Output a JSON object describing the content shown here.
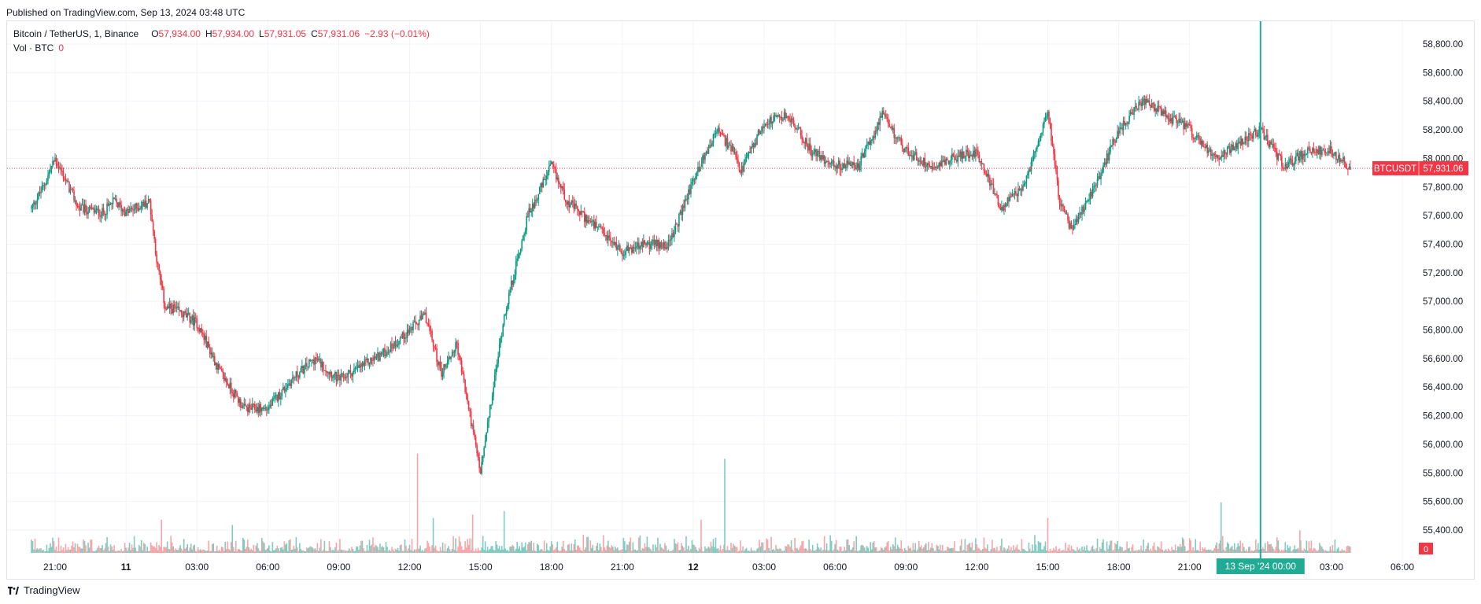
{
  "header": {
    "published": "Published on TradingView.com, Sep 13, 2024 03:48 UTC"
  },
  "legend": {
    "symbol": "Bitcoin / TetherUS, 1, Binance",
    "open_label": "O",
    "open": "57,934.00",
    "high_label": "H",
    "high": "57,934.00",
    "low_label": "L",
    "low": "57,931.05",
    "close_label": "C",
    "close": "57,931.06",
    "change": "−2.93 (−0.01%)",
    "volume_label": "Vol · BTC",
    "volume_value": "0"
  },
  "price_tag": {
    "ticker": "BTCUSDT",
    "price": "57,931.06",
    "value": 57931.06
  },
  "volume_tag": "0",
  "crosshair_time_label": "13 Sep '24    00:00",
  "footer": {
    "brand": "TradingView"
  },
  "colors": {
    "up": "#089981",
    "down": "#f23645",
    "up_volume": "#7fcbc0",
    "down_volume": "#f7a5a9",
    "crosshair": "#22ab94",
    "grid": "#f0f3fa",
    "axis_text": "#131722"
  },
  "chart_data": {
    "type": "candlestick",
    "title": "Bitcoin / TetherUS, 1, Binance",
    "interval": "1 minute",
    "y_axis": {
      "position": "right",
      "ylim": [
        55300,
        58950
      ],
      "ticks": [
        55400,
        55600,
        55800,
        56000,
        56200,
        56400,
        56600,
        56800,
        57000,
        57200,
        57400,
        57600,
        57800,
        58000,
        58200,
        58400,
        58600,
        58800
      ],
      "tick_labels": [
        "55,400.00",
        "55,600.00",
        "55,800.00",
        "56,000.00",
        "56,200.00",
        "56,400.00",
        "56,600.00",
        "56,800.00",
        "57,000.00",
        "57,200.00",
        "57,400.00",
        "57,600.00",
        "57,800.00",
        "58,000.00",
        "58,200.00",
        "58,400.00",
        "58,600.00",
        "58,800.00"
      ]
    },
    "x_axis": {
      "time_range": [
        "2024-09-10 20:00",
        "2024-09-13 06:00"
      ],
      "ticks": [
        "2024-09-10 21:00",
        "2024-09-11 00:00",
        "2024-09-11 03:00",
        "2024-09-11 06:00",
        "2024-09-11 09:00",
        "2024-09-11 12:00",
        "2024-09-11 15:00",
        "2024-09-11 18:00",
        "2024-09-11 21:00",
        "2024-09-12 00:00",
        "2024-09-12 03:00",
        "2024-09-12 06:00",
        "2024-09-12 09:00",
        "2024-09-12 12:00",
        "2024-09-12 15:00",
        "2024-09-12 18:00",
        "2024-09-12 21:00",
        "2024-09-13 03:00",
        "2024-09-13 06:00"
      ],
      "tick_labels": [
        "21:00",
        "11",
        "03:00",
        "06:00",
        "09:00",
        "12:00",
        "15:00",
        "18:00",
        "21:00",
        "12",
        "03:00",
        "06:00",
        "09:00",
        "12:00",
        "15:00",
        "18:00",
        "21:00",
        "03:00",
        "06:00"
      ]
    },
    "price_path": {
      "description": "approximate price trajectory (time, price)",
      "time": [
        "2024-09-10 20:00",
        "2024-09-10 20:30",
        "2024-09-10 21:00",
        "2024-09-10 22:00",
        "2024-09-10 23:00",
        "2024-09-10 23:30",
        "2024-09-11 00:00",
        "2024-09-11 01:00",
        "2024-09-11 01:20",
        "2024-09-11 01:40",
        "2024-09-11 02:00",
        "2024-09-11 03:00",
        "2024-09-11 04:00",
        "2024-09-11 05:00",
        "2024-09-11 06:00",
        "2024-09-11 07:00",
        "2024-09-11 08:00",
        "2024-09-11 09:00",
        "2024-09-11 10:00",
        "2024-09-11 11:00",
        "2024-09-11 12:00",
        "2024-09-11 12:40",
        "2024-09-11 13:20",
        "2024-09-11 14:00",
        "2024-09-11 14:40",
        "2024-09-11 15:00",
        "2024-09-11 16:00",
        "2024-09-11 17:00",
        "2024-09-11 18:00",
        "2024-09-11 18:40",
        "2024-09-11 20:00",
        "2024-09-11 21:00",
        "2024-09-11 22:00",
        "2024-09-11 23:00",
        "2024-09-12 00:00",
        "2024-09-12 01:00",
        "2024-09-12 01:40",
        "2024-09-12 02:00",
        "2024-09-12 03:00",
        "2024-09-12 04:00",
        "2024-09-12 05:00",
        "2024-09-12 06:00",
        "2024-09-12 07:00",
        "2024-09-12 08:00",
        "2024-09-12 09:00",
        "2024-09-12 10:00",
        "2024-09-12 11:00",
        "2024-09-12 12:00",
        "2024-09-12 13:00",
        "2024-09-12 14:00",
        "2024-09-12 15:00",
        "2024-09-12 15:30",
        "2024-09-12 16:00",
        "2024-09-12 17:00",
        "2024-09-12 18:00",
        "2024-09-12 19:00",
        "2024-09-12 20:00",
        "2024-09-12 21:00",
        "2024-09-12 22:00",
        "2024-09-12 23:00",
        "2024-09-13 00:00",
        "2024-09-13 01:00",
        "2024-09-13 02:00",
        "2024-09-13 03:00",
        "2024-09-13 03:48"
      ],
      "price": [
        57650,
        57800,
        58000,
        57650,
        57620,
        57700,
        57620,
        57700,
        57250,
        56950,
        56950,
        56850,
        56500,
        56250,
        56250,
        56450,
        56600,
        56450,
        56550,
        56650,
        56800,
        56900,
        56500,
        56700,
        56100,
        55800,
        56900,
        57600,
        57950,
        57700,
        57500,
        57350,
        57400,
        57400,
        57850,
        58200,
        58050,
        57900,
        58250,
        58300,
        58050,
        57950,
        57950,
        58300,
        58050,
        57950,
        58000,
        58050,
        57650,
        57800,
        58350,
        57700,
        57500,
        57800,
        58200,
        58400,
        58300,
        58200,
        58000,
        58100,
        58200,
        57950,
        58050,
        58050,
        57931
      ]
    },
    "volume": {
      "description": "approximate BTC volume spikes (time, volume)",
      "time": [
        "2024-09-11 01:30",
        "2024-09-11 04:30",
        "2024-09-11 12:20",
        "2024-09-11 13:00",
        "2024-09-11 14:40",
        "2024-09-11 16:00",
        "2024-09-12 00:20",
        "2024-09-12 01:20",
        "2024-09-12 15:00",
        "2024-09-12 22:20",
        "2024-09-13 01:40"
      ],
      "value": [
        95,
        80,
        285,
        100,
        110,
        120,
        95,
        270,
        100,
        145,
        65
      ]
    }
  }
}
